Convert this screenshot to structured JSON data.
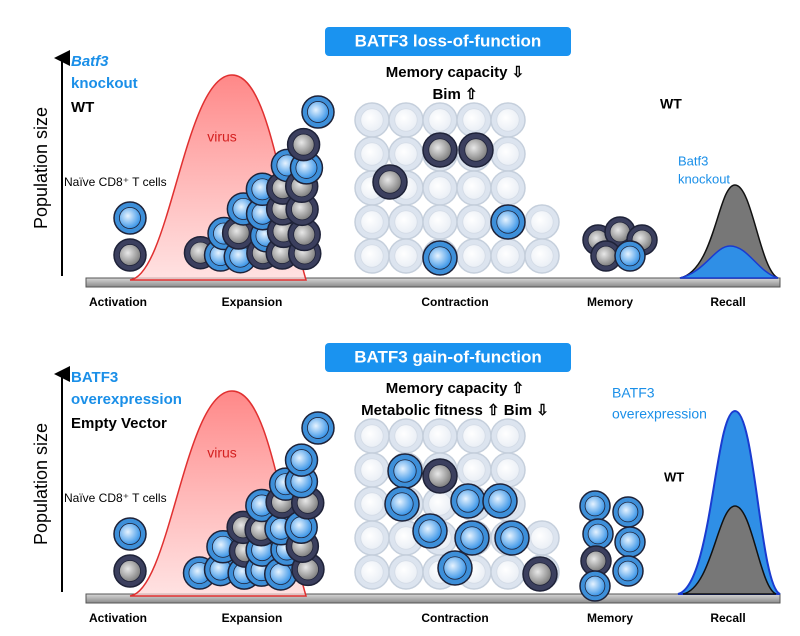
{
  "panels": [
    {
      "title": "BATF3 loss-of-function",
      "y_axis_label": "Population size",
      "legend": {
        "highlight_lines": [
          "Batf3",
          "knockout"
        ],
        "baseline": "WT"
      },
      "naive_label": "Naïve CD8⁺ T cells",
      "virus_label": "virus",
      "annotations": [
        "Memory capacity ⇩",
        "Bim ⇧"
      ],
      "recall_labels": {
        "top": [
          "WT"
        ],
        "bottom": [
          "Batf3",
          "knockout"
        ]
      },
      "phases": [
        "Activation",
        "Expansion",
        "Contraction",
        "Memory",
        "Recall"
      ]
    },
    {
      "title": "BATF3 gain-of-function",
      "y_axis_label": "Population size",
      "legend": {
        "highlight_lines": [
          "BATF3",
          "overexpression"
        ],
        "baseline": "Empty Vector"
      },
      "naive_label": "Naïve CD8⁺ T cells",
      "virus_label": "virus",
      "annotations": [
        "Memory capacity ⇧",
        "Metabolic fitness ⇧ Bim ⇩"
      ],
      "recall_labels": {
        "top": [
          "BATF3",
          "overexpression"
        ],
        "bottom": [
          "WT"
        ]
      },
      "phases": [
        "Activation",
        "Expansion",
        "Contraction",
        "Memory",
        "Recall"
      ]
    }
  ]
}
